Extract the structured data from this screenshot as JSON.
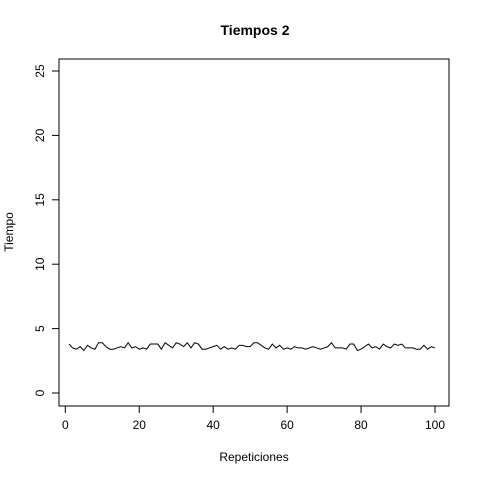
{
  "chart_data": {
    "type": "line",
    "title": "Tiempos 2",
    "xlabel": "Repeticiones",
    "ylabel": "Tiempo",
    "xlim": [
      1,
      100
    ],
    "ylim": [
      0,
      25
    ],
    "x_ticks": [
      0,
      20,
      40,
      60,
      80,
      100
    ],
    "y_ticks": [
      0,
      5,
      10,
      15,
      20,
      25
    ],
    "grid": false,
    "line_color": "#000000",
    "series": [
      {
        "x": [
          1,
          2,
          3,
          4,
          5,
          6,
          7,
          8,
          9,
          10,
          11,
          12,
          13,
          14,
          15,
          16,
          17,
          18,
          19,
          20,
          21,
          22,
          23,
          24,
          25,
          26,
          27,
          28,
          29,
          30,
          31,
          32,
          33,
          34,
          35,
          36,
          37,
          38,
          39,
          40,
          41,
          42,
          43,
          44,
          45,
          46,
          47,
          48,
          49,
          50,
          51,
          52,
          53,
          54,
          55,
          56,
          57,
          58,
          59,
          60,
          61,
          62,
          63,
          64,
          65,
          66,
          67,
          68,
          69,
          70,
          71,
          72,
          73,
          74,
          75,
          76,
          77,
          78,
          79,
          80,
          81,
          82,
          83,
          84,
          85,
          86,
          87,
          88,
          89,
          90,
          91,
          92,
          93,
          94,
          95,
          96,
          97,
          98,
          99,
          100
        ],
        "values": [
          3.8,
          3.5,
          3.4,
          3.6,
          3.3,
          3.7,
          3.5,
          3.4,
          3.9,
          3.9,
          3.6,
          3.4,
          3.4,
          3.5,
          3.6,
          3.5,
          3.9,
          3.5,
          3.6,
          3.4,
          3.5,
          3.4,
          3.8,
          3.8,
          3.8,
          3.4,
          3.9,
          3.7,
          3.5,
          3.9,
          3.8,
          3.6,
          3.9,
          3.5,
          3.9,
          3.8,
          3.4,
          3.4,
          3.5,
          3.6,
          3.7,
          3.4,
          3.6,
          3.4,
          3.5,
          3.4,
          3.7,
          3.7,
          3.6,
          3.6,
          3.9,
          3.9,
          3.7,
          3.5,
          3.4,
          3.8,
          3.5,
          3.7,
          3.4,
          3.5,
          3.4,
          3.6,
          3.5,
          3.5,
          3.4,
          3.5,
          3.6,
          3.5,
          3.4,
          3.5,
          3.6,
          3.9,
          3.5,
          3.5,
          3.5,
          3.4,
          3.8,
          3.8,
          3.3,
          3.4,
          3.6,
          3.8,
          3.5,
          3.6,
          3.4,
          3.8,
          3.6,
          3.5,
          3.8,
          3.7,
          3.8,
          3.5,
          3.5,
          3.5,
          3.4,
          3.4,
          3.7,
          3.4,
          3.6,
          3.5
        ]
      }
    ]
  }
}
